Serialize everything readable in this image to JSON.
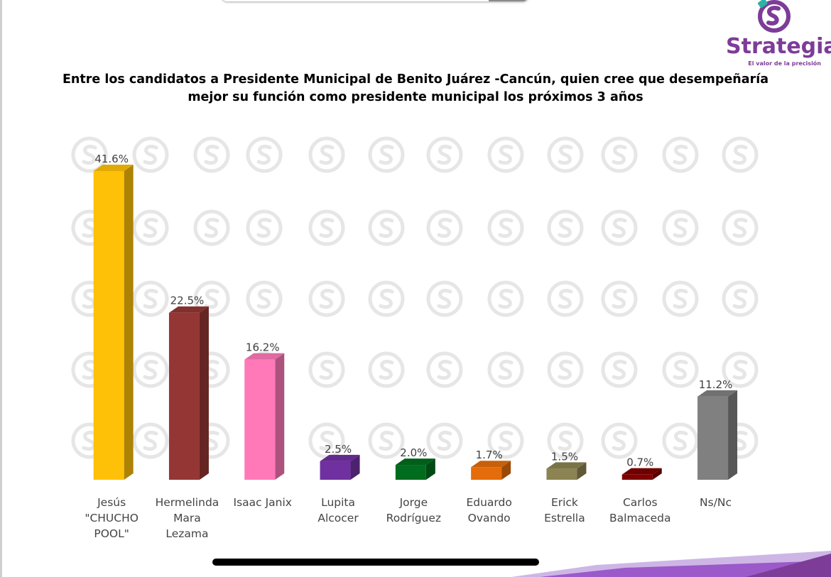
{
  "brand": {
    "name": "Strategia",
    "tagline": "El valor de la precisión"
  },
  "colors": {
    "brand": "#7d3c98",
    "watermark": "#e6e6e6"
  },
  "icons": {
    "logo": "strategia-logo-icon",
    "watermark": "strategia-watermark-icon"
  },
  "chart_data": {
    "type": "bar",
    "style": "3d",
    "title": "Entre los candidatos a Presidente Municipal de Benito Juárez -Cancún, quien cree que desempeñaría mejor su función como presidente municipal los próximos 3 años",
    "categories": [
      "Jesús \"CHUCHO POOL\"",
      "Hermelinda Mara Lezama",
      "Isaac Janix",
      "Lupita Alcocer",
      "Jorge Rodríguez",
      "Eduardo Ovando",
      "Erick Estrella",
      "Carlos Balmaceda",
      "Ns/Nc"
    ],
    "category_lines": [
      [
        "Jesús",
        "\"CHUCHO",
        "POOL\""
      ],
      [
        "Hermelinda",
        "Mara",
        "Lezama"
      ],
      [
        "Isaac Janix"
      ],
      [
        "Lupita",
        "Alcocer"
      ],
      [
        "Jorge",
        "Rodríguez"
      ],
      [
        "Eduardo",
        "Ovando"
      ],
      [
        "Erick",
        "Estrella"
      ],
      [
        "Carlos",
        "Balmaceda"
      ],
      [
        "Ns/Nc"
      ]
    ],
    "values": [
      41.6,
      22.5,
      16.2,
      2.5,
      2.0,
      1.7,
      1.5,
      0.7,
      11.2
    ],
    "value_labels": [
      "41.6%",
      "22.5%",
      "16.2%",
      "2.5%",
      "2.0%",
      "1.7%",
      "1.5%",
      "0.7%",
      "11.2%"
    ],
    "colors": [
      "#ffc107",
      "#943634",
      "#ff79b8",
      "#7030a0",
      "#006c1e",
      "#e46c0a",
      "#8c8352",
      "#7f0000",
      "#808080"
    ],
    "ylim": [
      0,
      42
    ],
    "grid": false,
    "legend": "none"
  }
}
